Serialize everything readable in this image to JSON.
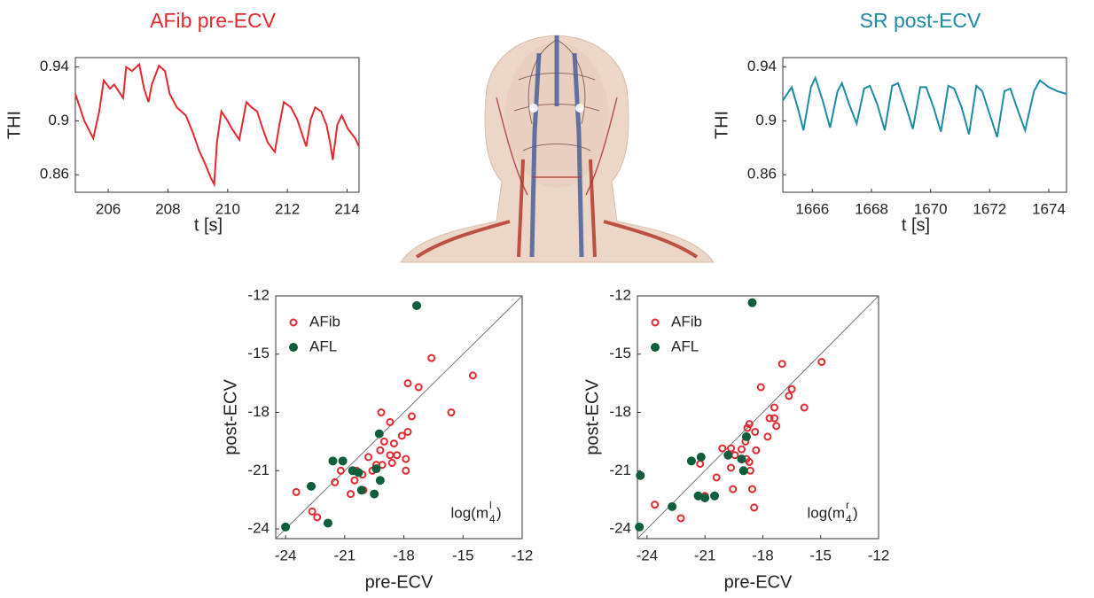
{
  "chart_data": [
    {
      "type": "line",
      "title": "AFib pre-ECV",
      "color": "#e3292f",
      "xlabel": "t [s]",
      "ylabel": "THI",
      "x": [
        204.9,
        205.2,
        205.5,
        205.7,
        205.85,
        206.06,
        206.2,
        206.5,
        206.6,
        206.8,
        207.04,
        207.2,
        207.35,
        207.46,
        207.7,
        207.9,
        208.06,
        208.3,
        208.6,
        208.84,
        209.04,
        209.25,
        209.43,
        209.55,
        209.64,
        209.79,
        209.97,
        210.15,
        210.39,
        210.63,
        210.8,
        210.99,
        211.13,
        211.34,
        211.58,
        211.73,
        211.88,
        212.12,
        212.33,
        212.63,
        212.78,
        212.93,
        213.13,
        213.31,
        213.43,
        213.52,
        213.67,
        213.82,
        214.03,
        214.27,
        214.4
      ],
      "values": [
        0.92,
        0.9,
        0.887,
        0.907,
        0.93,
        0.924,
        0.927,
        0.917,
        0.94,
        0.937,
        0.942,
        0.924,
        0.914,
        0.927,
        0.941,
        0.937,
        0.92,
        0.91,
        0.904,
        0.891,
        0.878,
        0.868,
        0.858,
        0.853,
        0.884,
        0.907,
        0.901,
        0.894,
        0.886,
        0.914,
        0.91,
        0.907,
        0.897,
        0.884,
        0.877,
        0.897,
        0.914,
        0.91,
        0.901,
        0.881,
        0.901,
        0.91,
        0.907,
        0.897,
        0.884,
        0.871,
        0.897,
        0.904,
        0.894,
        0.887,
        0.881
      ],
      "xlim": [
        204.9,
        214.4
      ],
      "ylim": [
        0.847,
        0.947
      ],
      "xticks": [
        206,
        208,
        210,
        212,
        214
      ],
      "yticks": [
        0.86,
        0.9,
        0.94
      ]
    },
    {
      "type": "line",
      "title": "SR post-ECV",
      "color": "#1e8aa4",
      "xlabel": "t [s]",
      "ylabel": "THI",
      "x": [
        1665.0,
        1665.3,
        1665.5,
        1665.7,
        1665.95,
        1666.1,
        1666.35,
        1666.6,
        1666.85,
        1667.0,
        1667.25,
        1667.5,
        1667.75,
        1667.95,
        1668.2,
        1668.45,
        1668.7,
        1668.9,
        1669.15,
        1669.4,
        1669.65,
        1669.85,
        1670.1,
        1670.35,
        1670.6,
        1670.8,
        1671.05,
        1671.3,
        1671.55,
        1671.75,
        1672.0,
        1672.25,
        1672.5,
        1672.7,
        1672.95,
        1673.2,
        1673.5,
        1673.7,
        1674.0,
        1674.3,
        1674.6
      ],
      "values": [
        0.915,
        0.925,
        0.91,
        0.893,
        0.925,
        0.932,
        0.915,
        0.895,
        0.922,
        0.928,
        0.912,
        0.898,
        0.924,
        0.926,
        0.912,
        0.893,
        0.926,
        0.928,
        0.912,
        0.894,
        0.925,
        0.925,
        0.91,
        0.892,
        0.926,
        0.924,
        0.91,
        0.89,
        0.926,
        0.922,
        0.905,
        0.888,
        0.922,
        0.924,
        0.908,
        0.893,
        0.922,
        0.93,
        0.925,
        0.922,
        0.92
      ],
      "xlim": [
        1665.0,
        1674.6
      ],
      "ylim": [
        0.847,
        0.947
      ],
      "xticks": [
        1666,
        1668,
        1670,
        1672,
        1674
      ],
      "yticks": [
        0.86,
        0.9,
        0.94
      ]
    },
    {
      "type": "scatter",
      "xlabel": "pre-ECV",
      "ylabel": "post-ECV",
      "legend": "upper left",
      "annotation": {
        "prefix": "log(m",
        "superscript": "l",
        "subscript": "4",
        "suffix": ")"
      },
      "xlim": [
        -24.5,
        -12
      ],
      "ylim": [
        -24.5,
        -12
      ],
      "xticks": [
        -24,
        -21,
        -18,
        -15,
        -12
      ],
      "yticks": [
        -24,
        -21,
        -18,
        -15,
        -12
      ],
      "series": [
        {
          "name": "AFib",
          "color": "#e3292f",
          "filled": false,
          "x": [
            -23.46,
            -22.65,
            -22.4,
            -21.5,
            -21.2,
            -20.7,
            -20.5,
            -20.4,
            -20.1,
            -20.05,
            -19.8,
            -19.6,
            -19.4,
            -19.2,
            -19.1,
            -19.0,
            -18.7,
            -18.6,
            -18.5,
            -18.35,
            -18.1,
            -17.9,
            -17.8,
            -19.15,
            -18.7,
            -17.6,
            -17.8,
            -17.25,
            -16.6,
            -15.6,
            -14.5,
            -17.9
          ],
          "values": [
            -22.1,
            -23.1,
            -23.4,
            -21.6,
            -21.0,
            -22.2,
            -21.5,
            -21.0,
            -21.2,
            -22.0,
            -20.3,
            -21.0,
            -20.7,
            -19.95,
            -20.7,
            -19.5,
            -20.2,
            -20.6,
            -19.6,
            -20.2,
            -19.2,
            -21.0,
            -19.0,
            -18.0,
            -18.5,
            -18.2,
            -16.5,
            -16.7,
            -15.2,
            -18.0,
            -16.1,
            -20.4
          ]
        },
        {
          "name": "AFL",
          "color": "#0f5e3b",
          "filled": true,
          "x": [
            -24.0,
            -22.7,
            -21.85,
            -21.6,
            -21.1,
            -20.6,
            -20.3,
            -20.15,
            -19.5,
            -19.4,
            -19.2,
            -19.25,
            -17.35
          ],
          "values": [
            -23.9,
            -21.8,
            -23.7,
            -20.5,
            -20.5,
            -21.0,
            -21.1,
            -22.0,
            -22.2,
            -20.9,
            -21.5,
            -19.1,
            -12.5
          ]
        }
      ]
    },
    {
      "type": "scatter",
      "xlabel": "pre-ECV",
      "ylabel": "post-ECV",
      "legend": "upper left",
      "annotation": {
        "prefix": "log(m",
        "superscript": "r",
        "subscript": "4",
        "suffix": ")"
      },
      "xlim": [
        -24.5,
        -12
      ],
      "ylim": [
        -24.5,
        -12
      ],
      "xticks": [
        -24,
        -21,
        -18,
        -15,
        -12
      ],
      "yticks": [
        -24,
        -21,
        -18,
        -15,
        -12
      ],
      "series": [
        {
          "name": "AFib",
          "color": "#e3292f",
          "filled": false,
          "x": [
            -23.6,
            -22.25,
            -21.0,
            -20.5,
            -21.25,
            -20.4,
            -20.1,
            -19.65,
            -19.45,
            -19.65,
            -19.55,
            -19.1,
            -18.85,
            -18.7,
            -18.65,
            -18.8,
            -18.7,
            -18.4,
            -18.55,
            -18.45,
            -18.35,
            -18.1,
            -17.75,
            -17.65,
            -17.4,
            -17.4,
            -17.0,
            -17.3,
            -16.65,
            -16.5,
            -15.85,
            -14.95,
            -18.9
          ],
          "values": [
            -22.75,
            -23.45,
            -22.3,
            -22.3,
            -20.65,
            -21.35,
            -19.85,
            -19.85,
            -20.2,
            -20.85,
            -21.95,
            -19.9,
            -20.4,
            -20.55,
            -21.0,
            -18.8,
            -18.6,
            -19.0,
            -21.95,
            -22.9,
            -19.95,
            -16.7,
            -19.25,
            -18.3,
            -18.3,
            -17.75,
            -15.5,
            -18.7,
            -17.15,
            -16.8,
            -17.75,
            -15.4,
            -19.5
          ]
        },
        {
          "name": "AFL",
          "color": "#0f5e3b",
          "filled": true,
          "x": [
            -24.35,
            -24.4,
            -22.7,
            -21.7,
            -21.2,
            -21.35,
            -21.0,
            -20.5,
            -19.8,
            -19.1,
            -19.0,
            -18.85,
            -18.55
          ],
          "values": [
            -21.25,
            -23.9,
            -22.85,
            -20.5,
            -20.3,
            -22.3,
            -22.4,
            -22.3,
            -20.2,
            -20.4,
            -21.0,
            -19.25,
            -12.35
          ]
        }
      ]
    }
  ]
}
